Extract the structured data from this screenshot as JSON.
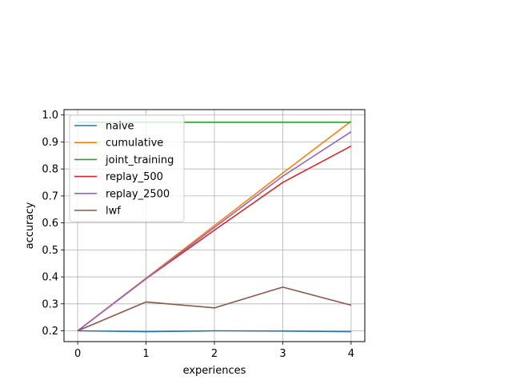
{
  "chart_data": {
    "type": "line",
    "title": "",
    "xlabel": "experiences",
    "ylabel": "accuracy",
    "x": [
      0,
      1,
      2,
      3,
      4
    ],
    "xlim": [
      -0.2,
      4.2
    ],
    "ylim": [
      0.16,
      1.02
    ],
    "xticks": [
      "0",
      "1",
      "2",
      "3",
      "4"
    ],
    "yticks": [
      "0.2",
      "0.3",
      "0.4",
      "0.5",
      "0.6",
      "0.7",
      "0.8",
      "0.9",
      "1.0"
    ],
    "grid": true,
    "legend_position": "top-left",
    "series": [
      {
        "name": "naive",
        "color": "#1f77b4",
        "values": [
          0.2,
          0.197,
          0.2,
          0.199,
          0.197
        ]
      },
      {
        "name": "cumulative",
        "color": "#ff7f0e",
        "values": [
          0.2,
          0.395,
          0.59,
          0.785,
          0.977
        ]
      },
      {
        "name": "joint_training",
        "color": "#2ca02c",
        "values": [
          0.973,
          0.973,
          0.973,
          0.973,
          0.973
        ]
      },
      {
        "name": "replay_500",
        "color": "#d62728",
        "values": [
          0.2,
          0.393,
          0.573,
          0.75,
          0.885
        ]
      },
      {
        "name": "replay_2500",
        "color": "#9467bd",
        "values": [
          0.2,
          0.393,
          0.583,
          0.773,
          0.938
        ]
      },
      {
        "name": "lwf",
        "color": "#8c564b",
        "values": [
          0.2,
          0.307,
          0.285,
          0.362,
          0.295
        ]
      }
    ]
  }
}
